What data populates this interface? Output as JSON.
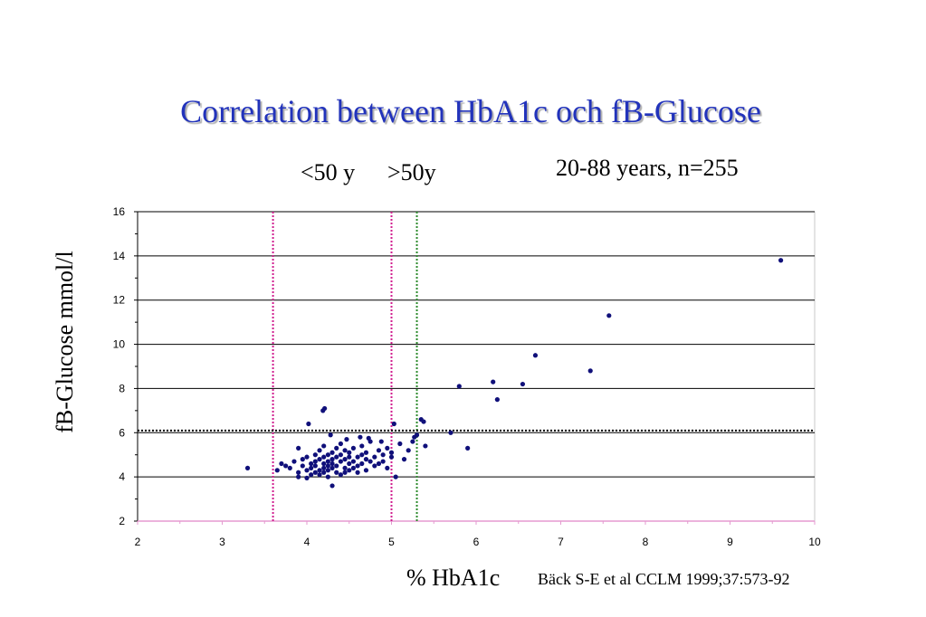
{
  "chart_data": {
    "type": "scatter",
    "title": "Correlation between HbA1c och fB-Glucose",
    "subtitle": "20-88 years, n=255",
    "xlabel": "% HbA1c",
    "ylabel": "fB-Glucose mmol/l",
    "xlim": [
      2,
      10
    ],
    "ylim": [
      2,
      16
    ],
    "x_ticks": [
      "2",
      "3",
      "4",
      "5",
      "6",
      "7",
      "8",
      "9",
      "10"
    ],
    "y_ticks": [
      "2",
      "4",
      "6",
      "8",
      "10",
      "12",
      "14",
      "16"
    ],
    "grid": "horizontal",
    "annotations": {
      "under50": "<50 y",
      "over50": ">50y",
      "citation": "Bäck S-E et al CCLM 1999;37:573-92"
    },
    "reference_lines": [
      {
        "axis": "x",
        "value": 3.6,
        "color": "#d01f8f",
        "style": "dotted"
      },
      {
        "axis": "x",
        "value": 5.0,
        "color": "#d01f8f",
        "style": "dotted"
      },
      {
        "axis": "x",
        "value": 5.3,
        "color": "#2e8b2e",
        "style": "dotted"
      },
      {
        "axis": "y",
        "value": 6.1,
        "color": "#000000",
        "style": "dotted"
      }
    ],
    "colors": {
      "points": "#10107a",
      "title": "#2233bb"
    },
    "x": [
      3.3,
      3.65,
      3.7,
      3.75,
      3.8,
      3.85,
      3.9,
      3.9,
      3.95,
      3.95,
      4.0,
      4.0,
      4.0,
      4.05,
      4.05,
      4.05,
      4.1,
      4.1,
      4.1,
      4.1,
      4.15,
      4.15,
      4.15,
      4.15,
      4.2,
      4.2,
      4.2,
      4.2,
      4.2,
      4.25,
      4.25,
      4.25,
      4.25,
      4.25,
      4.3,
      4.3,
      4.3,
      4.3,
      4.3,
      4.35,
      4.35,
      4.35,
      4.35,
      4.4,
      4.4,
      4.4,
      4.4,
      4.45,
      4.45,
      4.45,
      4.45,
      4.5,
      4.5,
      4.5,
      4.5,
      4.55,
      4.55,
      4.55,
      4.6,
      4.6,
      4.6,
      4.65,
      4.65,
      4.65,
      4.7,
      4.7,
      4.7,
      4.75,
      4.75,
      4.8,
      4.8,
      4.85,
      4.85,
      4.9,
      4.9,
      4.95,
      4.95,
      5.0,
      5.0,
      5.05,
      5.1,
      5.15,
      5.2,
      5.25,
      5.3,
      5.35,
      5.4,
      5.7,
      5.8,
      5.9,
      6.2,
      6.25,
      6.55,
      6.7,
      7.35,
      7.57,
      9.6,
      3.9,
      4.02,
      4.19,
      4.21,
      4.28,
      4.47,
      4.63,
      4.73,
      4.88,
      5.03,
      5.27,
      5.38
    ],
    "y": [
      4.4,
      4.3,
      4.6,
      4.5,
      4.4,
      4.7,
      4.2,
      4.0,
      4.5,
      4.8,
      3.95,
      4.3,
      4.9,
      4.1,
      4.6,
      4.4,
      4.7,
      4.2,
      5.0,
      4.5,
      4.3,
      4.8,
      4.1,
      5.2,
      4.6,
      4.4,
      4.9,
      4.2,
      5.4,
      4.5,
      4.0,
      4.7,
      5.0,
      4.3,
      4.8,
      3.6,
      4.4,
      5.1,
      4.6,
      4.2,
      4.9,
      5.3,
      4.5,
      4.7,
      4.1,
      5.0,
      5.5,
      4.4,
      4.8,
      4.2,
      5.2,
      4.6,
      4.9,
      4.3,
      5.1,
      4.7,
      4.4,
      5.3,
      4.5,
      4.9,
      4.2,
      5.0,
      4.6,
      5.4,
      4.8,
      4.3,
      5.1,
      4.7,
      5.6,
      4.9,
      4.5,
      5.2,
      4.6,
      5.0,
      4.7,
      4.4,
      5.3,
      4.9,
      5.1,
      4.0,
      5.5,
      4.8,
      5.2,
      5.6,
      5.9,
      6.6,
      5.4,
      6.0,
      8.1,
      5.3,
      8.3,
      7.5,
      8.2,
      9.5,
      8.8,
      11.3,
      13.8,
      5.3,
      6.4,
      7.0,
      7.1,
      5.9,
      5.7,
      5.8,
      5.75,
      5.6,
      6.4,
      5.8,
      6.5
    ]
  }
}
